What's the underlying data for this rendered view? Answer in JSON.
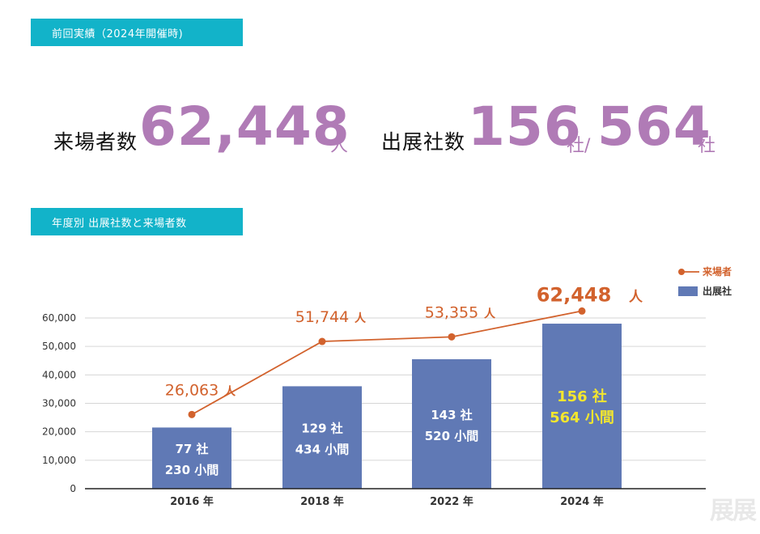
{
  "section1": {
    "title": "前回実績（2024年開催時)"
  },
  "section2": {
    "title": "年度別 出展社数と来場者数"
  },
  "summary": {
    "visitors_label": "来場者数",
    "visitors_value": "62,448",
    "visitors_unit": "人",
    "exhibitors_label": "出展社数",
    "companies_value": "156",
    "companies_unit": "社/",
    "booths_value": "564",
    "booths_unit": "社"
  },
  "watermark": "展展",
  "chart_data": {
    "type": "bar",
    "categories": [
      "2016 年",
      "2018 年",
      "2022 年",
      "2024 年"
    ],
    "ylim": [
      0,
      60000
    ],
    "yticks": [
      "0",
      "10,000",
      "20,000",
      "30,000",
      "40,000",
      "50,000",
      "60,000"
    ],
    "grid": true,
    "legend_position": "top-right",
    "colors": {
      "bar": "#6079b5",
      "line": "#d2622d",
      "highlight_text": "#f3e62e",
      "bar_text": "#ffffff"
    },
    "series": [
      {
        "name": "出展社",
        "type": "bar",
        "values": [
          21500,
          36000,
          45500,
          58000
        ],
        "labels_companies": [
          "77 社",
          "129 社",
          "143 社",
          "156 社"
        ],
        "labels_booths": [
          "230 小間",
          "434 小間",
          "520 小間",
          "564 小間"
        ]
      },
      {
        "name": "来場者",
        "type": "line",
        "values": [
          26063,
          51744,
          53355,
          62448
        ],
        "labels": [
          "26,063",
          "51,744",
          "53,355",
          "62,448"
        ],
        "label_unit": "人"
      }
    ]
  }
}
